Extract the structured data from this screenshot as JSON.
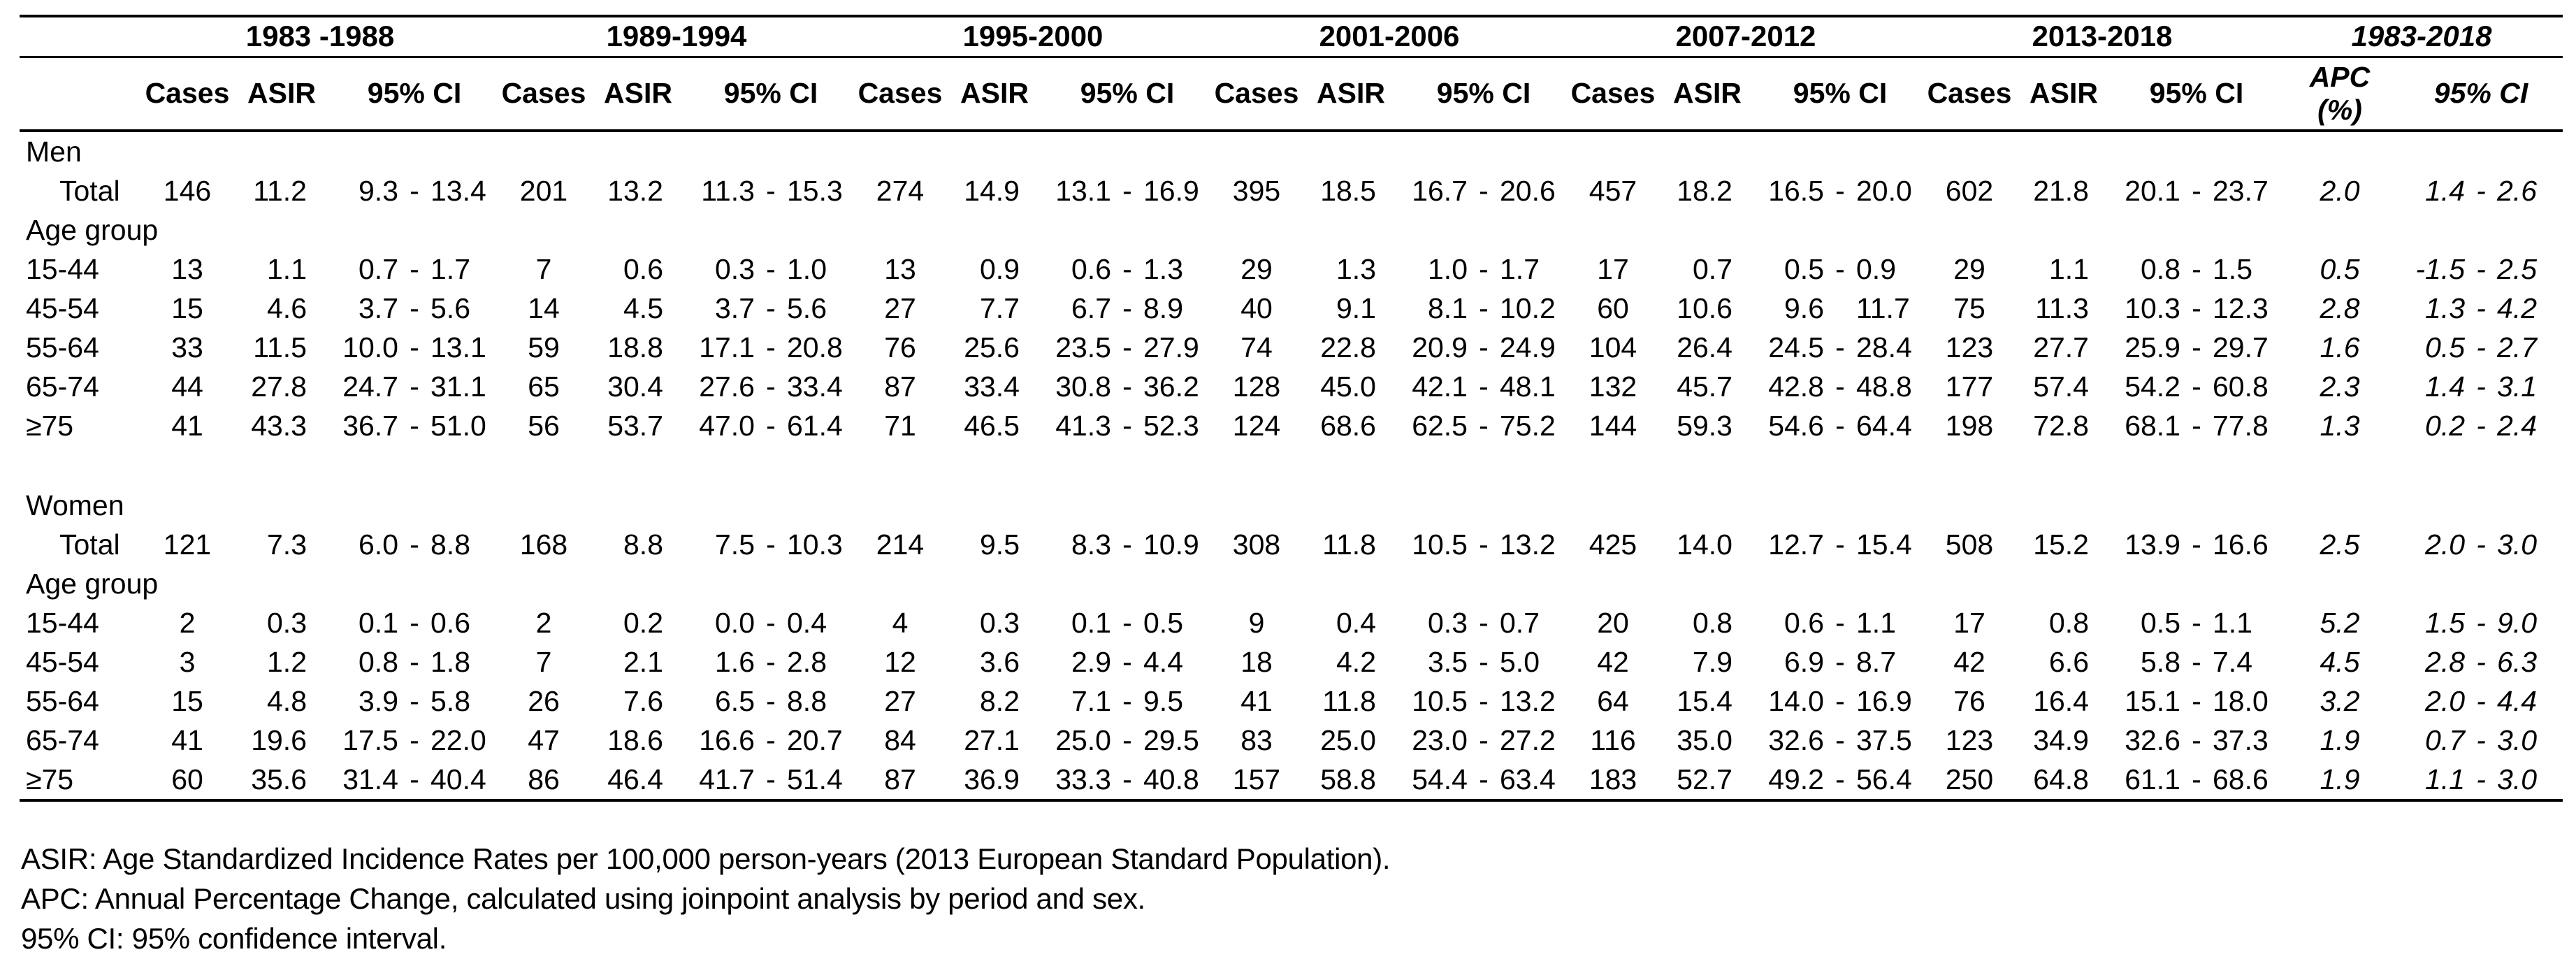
{
  "table": {
    "periods": [
      "1983 -1988",
      "1989-1994",
      "1995-2000",
      "2001-2006",
      "2007-2012",
      "2013-2018"
    ],
    "summary_period": "1983-2018",
    "headers": {
      "cases": "Cases",
      "asir": "ASIR",
      "ci": "95% CI",
      "apc": "APC",
      "apc_unit": "(%)",
      "apc_ci": "95% CI"
    },
    "sections": [
      {
        "label": "Men",
        "rows": [
          {
            "label": "Total",
            "indent": true,
            "cells": [
              [
                "146",
                "11.2",
                "9.3",
                "-",
                "13.4"
              ],
              [
                "201",
                "13.2",
                "11.3",
                "-",
                "15.3"
              ],
              [
                "274",
                "14.9",
                "13.1",
                "-",
                "16.9"
              ],
              [
                "395",
                "18.5",
                "16.7",
                "-",
                "20.6"
              ],
              [
                "457",
                "18.2",
                "16.5",
                "-",
                "20.0"
              ],
              [
                "602",
                "21.8",
                "20.1",
                "-",
                "23.7"
              ]
            ],
            "apc": "2.0",
            "apc_ci": [
              "1.4",
              "-",
              "2.6"
            ]
          },
          {
            "label": "Age group"
          },
          {
            "label": "15-44",
            "cells": [
              [
                "13",
                "1.1",
                "0.7",
                "-",
                "1.7"
              ],
              [
                "7",
                "0.6",
                "0.3",
                "-",
                "1.0"
              ],
              [
                "13",
                "0.9",
                "0.6",
                "-",
                "1.3"
              ],
              [
                "29",
                "1.3",
                "1.0",
                "-",
                "1.7"
              ],
              [
                "17",
                "0.7",
                "0.5",
                "-",
                "0.9"
              ],
              [
                "29",
                "1.1",
                "0.8",
                "-",
                "1.5"
              ]
            ],
            "apc": "0.5",
            "apc_ci": [
              "-1.5",
              "-",
              "2.5"
            ]
          },
          {
            "label": "45-54",
            "cells": [
              [
                "15",
                "4.6",
                "3.7",
                "-",
                "5.6"
              ],
              [
                "14",
                "4.5",
                "3.7",
                "-",
                "5.6"
              ],
              [
                "27",
                "7.7",
                "6.7",
                "-",
                "8.9"
              ],
              [
                "40",
                "9.1",
                "8.1",
                "-",
                "10.2"
              ],
              [
                "60",
                "10.6",
                "9.6",
                "",
                "11.7"
              ],
              [
                "75",
                "11.3",
                "10.3",
                "-",
                "12.3"
              ]
            ],
            "apc": "2.8",
            "apc_ci": [
              "1.3",
              "-",
              "4.2"
            ]
          },
          {
            "label": "55-64",
            "cells": [
              [
                "33",
                "11.5",
                "10.0",
                "-",
                "13.1"
              ],
              [
                "59",
                "18.8",
                "17.1",
                "-",
                "20.8"
              ],
              [
                "76",
                "25.6",
                "23.5",
                "-",
                "27.9"
              ],
              [
                "74",
                "22.8",
                "20.9",
                "-",
                "24.9"
              ],
              [
                "104",
                "26.4",
                "24.5",
                "-",
                "28.4"
              ],
              [
                "123",
                "27.7",
                "25.9",
                "-",
                "29.7"
              ]
            ],
            "apc": "1.6",
            "apc_ci": [
              "0.5",
              "-",
              "2.7"
            ]
          },
          {
            "label": "65-74",
            "cells": [
              [
                "44",
                "27.8",
                "24.7",
                "-",
                "31.1"
              ],
              [
                "65",
                "30.4",
                "27.6",
                "-",
                "33.4"
              ],
              [
                "87",
                "33.4",
                "30.8",
                "-",
                "36.2"
              ],
              [
                "128",
                "45.0",
                "42.1",
                "-",
                "48.1"
              ],
              [
                "132",
                "45.7",
                "42.8",
                "-",
                "48.8"
              ],
              [
                "177",
                "57.4",
                "54.2",
                "-",
                "60.8"
              ]
            ],
            "apc": "2.3",
            "apc_ci": [
              "1.4",
              "-",
              "3.1"
            ]
          },
          {
            "label": "≥75",
            "cells": [
              [
                "41",
                "43.3",
                "36.7",
                "-",
                "51.0"
              ],
              [
                "56",
                "53.7",
                "47.0",
                "-",
                "61.4"
              ],
              [
                "71",
                "46.5",
                "41.3",
                "-",
                "52.3"
              ],
              [
                "124",
                "68.6",
                "62.5",
                "-",
                "75.2"
              ],
              [
                "144",
                "59.3",
                "54.6",
                "-",
                "64.4"
              ],
              [
                "198",
                "72.8",
                "68.1",
                "-",
                "77.8"
              ]
            ],
            "apc": "1.3",
            "apc_ci": [
              "0.2",
              "-",
              "2.4"
            ]
          }
        ]
      },
      {
        "label": "Women",
        "rows": [
          {
            "label": "Total",
            "indent": true,
            "cells": [
              [
                "121",
                "7.3",
                "6.0",
                "-",
                "8.8"
              ],
              [
                "168",
                "8.8",
                "7.5",
                "-",
                "10.3"
              ],
              [
                "214",
                "9.5",
                "8.3",
                "-",
                "10.9"
              ],
              [
                "308",
                "11.8",
                "10.5",
                "-",
                "13.2"
              ],
              [
                "425",
                "14.0",
                "12.7",
                "-",
                "15.4"
              ],
              [
                "508",
                "15.2",
                "13.9",
                "-",
                "16.6"
              ]
            ],
            "apc": "2.5",
            "apc_ci": [
              "2.0",
              "-",
              "3.0"
            ]
          },
          {
            "label": "Age group"
          },
          {
            "label": "15-44",
            "cells": [
              [
                "2",
                "0.3",
                "0.1",
                "-",
                "0.6"
              ],
              [
                "2",
                "0.2",
                "0.0",
                "-",
                "0.4"
              ],
              [
                "4",
                "0.3",
                "0.1",
                "-",
                "0.5"
              ],
              [
                "9",
                "0.4",
                "0.3",
                "-",
                "0.7"
              ],
              [
                "20",
                "0.8",
                "0.6",
                "-",
                "1.1"
              ],
              [
                "17",
                "0.8",
                "0.5",
                "-",
                "1.1"
              ]
            ],
            "apc": "5.2",
            "apc_ci": [
              "1.5",
              "-",
              "9.0"
            ]
          },
          {
            "label": "45-54",
            "cells": [
              [
                "3",
                "1.2",
                "0.8",
                "-",
                "1.8"
              ],
              [
                "7",
                "2.1",
                "1.6",
                "-",
                "2.8"
              ],
              [
                "12",
                "3.6",
                "2.9",
                "-",
                "4.4"
              ],
              [
                "18",
                "4.2",
                "3.5",
                "-",
                "5.0"
              ],
              [
                "42",
                "7.9",
                "6.9",
                "-",
                "8.7"
              ],
              [
                "42",
                "6.6",
                "5.8",
                "-",
                "7.4"
              ]
            ],
            "apc": "4.5",
            "apc_ci": [
              "2.8",
              "-",
              "6.3"
            ]
          },
          {
            "label": "55-64",
            "cells": [
              [
                "15",
                "4.8",
                "3.9",
                "-",
                "5.8"
              ],
              [
                "26",
                "7.6",
                "6.5",
                "-",
                "8.8"
              ],
              [
                "27",
                "8.2",
                "7.1",
                "-",
                "9.5"
              ],
              [
                "41",
                "11.8",
                "10.5",
                "-",
                "13.2"
              ],
              [
                "64",
                "15.4",
                "14.0",
                "-",
                "16.9"
              ],
              [
                "76",
                "16.4",
                "15.1",
                "-",
                "18.0"
              ]
            ],
            "apc": "3.2",
            "apc_ci": [
              "2.0",
              "-",
              "4.4"
            ]
          },
          {
            "label": "65-74",
            "cells": [
              [
                "41",
                "19.6",
                "17.5",
                "-",
                "22.0"
              ],
              [
                "47",
                "18.6",
                "16.6",
                "-",
                "20.7"
              ],
              [
                "84",
                "27.1",
                "25.0",
                "-",
                "29.5"
              ],
              [
                "83",
                "25.0",
                "23.0",
                "-",
                "27.2"
              ],
              [
                "116",
                "35.0",
                "32.6",
                "-",
                "37.5"
              ],
              [
                "123",
                "34.9",
                "32.6",
                "-",
                "37.3"
              ]
            ],
            "apc": "1.9",
            "apc_ci": [
              "0.7",
              "-",
              "3.0"
            ]
          },
          {
            "label": "≥75",
            "cells": [
              [
                "60",
                "35.6",
                "31.4",
                "-",
                "40.4"
              ],
              [
                "86",
                "46.4",
                "41.7",
                "-",
                "51.4"
              ],
              [
                "87",
                "36.9",
                "33.3",
                "-",
                "40.8"
              ],
              [
                "157",
                "58.8",
                "54.4",
                "-",
                "63.4"
              ],
              [
                "183",
                "52.7",
                "49.2",
                "-",
                "56.4"
              ],
              [
                "250",
                "64.8",
                "61.1",
                "-",
                "68.6"
              ]
            ],
            "apc": "1.9",
            "apc_ci": [
              "1.1",
              "-",
              "3.0"
            ]
          }
        ]
      }
    ]
  },
  "footnotes": [
    "ASIR: Age Standardized Incidence Rates per 100,000 person-years (2013 European Standard Population).",
    "APC: Annual Percentage Change, calculated using joinpoint analysis by period and sex.",
    "95% CI: 95% confidence interval."
  ]
}
